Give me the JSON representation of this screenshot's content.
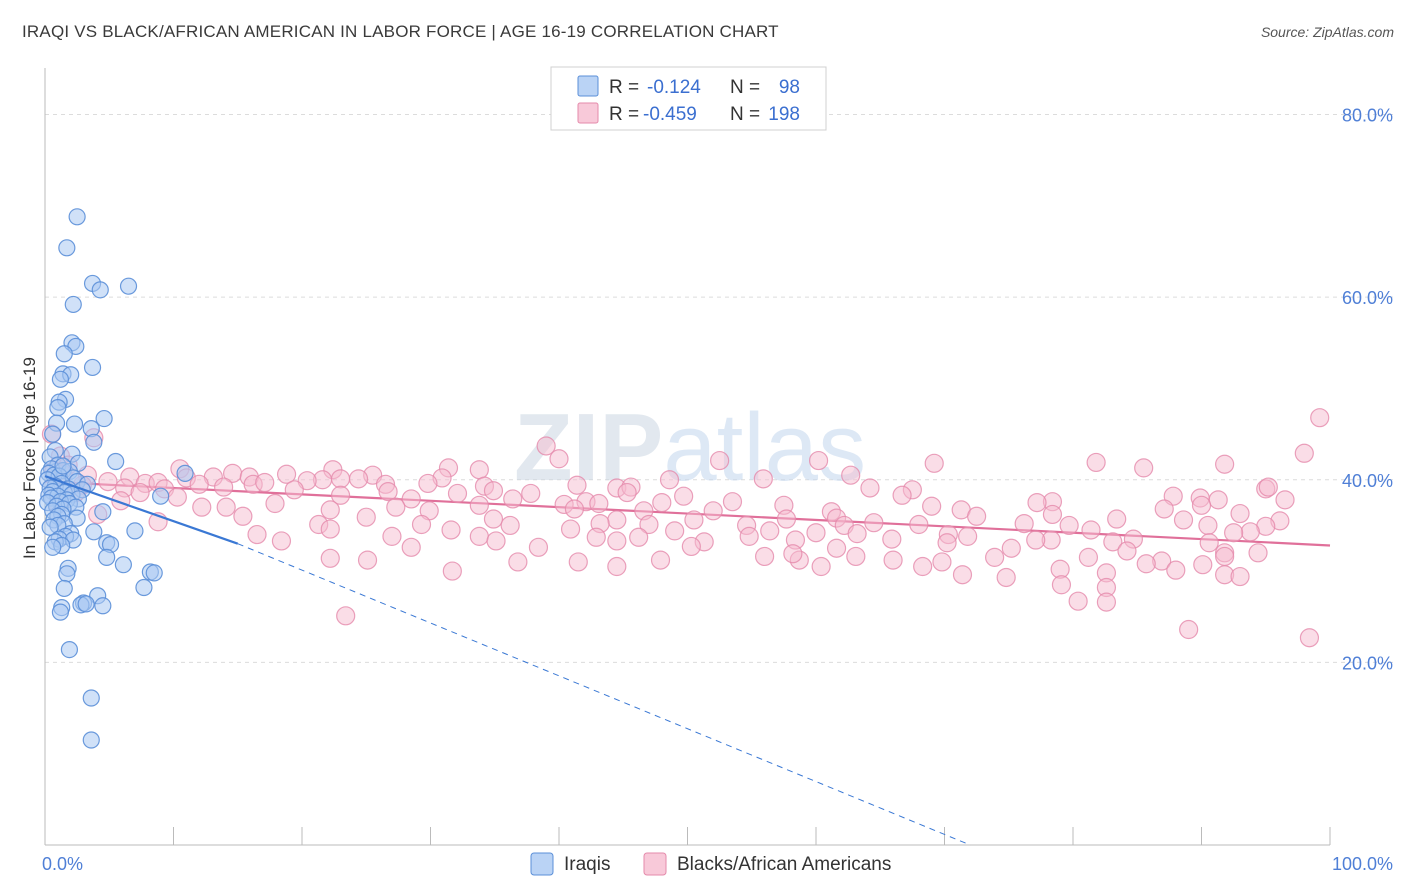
{
  "title": "IRAQI VS BLACK/AFRICAN AMERICAN IN LABOR FORCE | AGE 16-19 CORRELATION CHART",
  "source": "Source: ZipAtlas.com",
  "watermark": "ZIPatlas",
  "colors": {
    "iraqi_fill": "#a9c8f2",
    "iraqi_stroke": "#5b8fd8",
    "iraqi_line": "#3a78d4",
    "black_fill": "#f6bcd0",
    "black_stroke": "#e58aab",
    "black_line": "#e0709a",
    "axis_label": "#4f7fd6",
    "grid": "#dcdcdc"
  },
  "legend": {
    "rows": [
      {
        "r_label": "R =",
        "r_value": "-0.124",
        "n_label": "N =",
        "n_value": "98"
      },
      {
        "r_label": "R =",
        "r_value": "-0.459",
        "n_label": "N =",
        "n_value": "198"
      }
    ]
  },
  "chart_data": {
    "type": "scatter",
    "title": "IRAQI VS BLACK/AFRICAN AMERICAN IN LABOR FORCE | AGE 16-19 CORRELATION CHART",
    "xlabel": "",
    "ylabel": "In Labor Force | Age 16-19",
    "xlim": [
      0,
      100
    ],
    "ylim": [
      0,
      84
    ],
    "x_tick_labels": [
      "0.0%",
      "100.0%"
    ],
    "y_ticks": [
      20,
      40,
      60,
      80
    ],
    "y_tick_labels": [
      "20.0%",
      "40.0%",
      "60.0%",
      "80.0%"
    ],
    "grid": true,
    "series": [
      {
        "name": "Iraqis",
        "R": -0.124,
        "N": 98,
        "trend_solid": [
          [
            0,
            40.4
          ],
          [
            15,
            33.0
          ]
        ],
        "trend_dashed": [
          [
            15,
            33.0
          ],
          [
            72,
            0
          ]
        ],
        "points": [
          [
            2.5,
            68.8
          ],
          [
            1.7,
            65.4
          ],
          [
            3.7,
            61.5
          ],
          [
            4.3,
            60.8
          ],
          [
            6.5,
            61.2
          ],
          [
            2.2,
            59.2
          ],
          [
            2.1,
            55.0
          ],
          [
            2.4,
            54.6
          ],
          [
            1.5,
            53.8
          ],
          [
            3.7,
            52.3
          ],
          [
            1.4,
            51.6
          ],
          [
            2.0,
            51.5
          ],
          [
            1.2,
            51.0
          ],
          [
            1.6,
            48.8
          ],
          [
            1.1,
            48.5
          ],
          [
            1.0,
            47.9
          ],
          [
            4.6,
            46.7
          ],
          [
            0.9,
            46.2
          ],
          [
            2.3,
            46.1
          ],
          [
            3.6,
            45.6
          ],
          [
            0.6,
            45.0
          ],
          [
            3.8,
            44.1
          ],
          [
            0.8,
            43.2
          ],
          [
            2.1,
            42.8
          ],
          [
            0.4,
            42.5
          ],
          [
            5.5,
            42.0
          ],
          [
            2.6,
            41.8
          ],
          [
            1.0,
            41.6
          ],
          [
            0.5,
            41.2
          ],
          [
            1.4,
            41.0
          ],
          [
            1.9,
            40.9
          ],
          [
            0.3,
            40.7
          ],
          [
            10.9,
            40.7
          ],
          [
            0.7,
            40.5
          ],
          [
            1.1,
            40.4
          ],
          [
            2.2,
            40.2
          ],
          [
            0.2,
            40.0
          ],
          [
            2.5,
            39.8
          ],
          [
            1.3,
            39.6
          ],
          [
            3.3,
            39.5
          ],
          [
            0.8,
            39.3
          ],
          [
            0.4,
            39.1
          ],
          [
            1.8,
            39.0
          ],
          [
            2.9,
            38.9
          ],
          [
            0.6,
            38.7
          ],
          [
            1.5,
            38.6
          ],
          [
            2.1,
            38.4
          ],
          [
            0.3,
            38.3
          ],
          [
            1.0,
            38.2
          ],
          [
            9.0,
            38.2
          ],
          [
            0.5,
            38.0
          ],
          [
            2.6,
            37.9
          ],
          [
            1.7,
            37.8
          ],
          [
            1.2,
            37.6
          ],
          [
            0.2,
            37.5
          ],
          [
            1.9,
            37.4
          ],
          [
            0.9,
            37.1
          ],
          [
            2.4,
            37.0
          ],
          [
            1.4,
            36.8
          ],
          [
            0.6,
            36.6
          ],
          [
            4.5,
            36.5
          ],
          [
            1.3,
            36.2
          ],
          [
            1.0,
            36.0
          ],
          [
            2.5,
            35.8
          ],
          [
            0.7,
            35.6
          ],
          [
            1.5,
            35.2
          ],
          [
            1.0,
            35.0
          ],
          [
            0.4,
            34.8
          ],
          [
            7.0,
            34.4
          ],
          [
            3.8,
            34.3
          ],
          [
            2.0,
            34.1
          ],
          [
            1.6,
            33.8
          ],
          [
            1.1,
            33.5
          ],
          [
            2.2,
            33.4
          ],
          [
            0.8,
            33.2
          ],
          [
            4.8,
            33.1
          ],
          [
            5.1,
            32.9
          ],
          [
            1.3,
            32.8
          ],
          [
            0.6,
            32.6
          ],
          [
            4.8,
            31.5
          ],
          [
            6.1,
            30.7
          ],
          [
            1.8,
            30.3
          ],
          [
            8.2,
            29.9
          ],
          [
            8.5,
            29.8
          ],
          [
            1.7,
            29.7
          ],
          [
            7.7,
            28.2
          ],
          [
            1.5,
            28.1
          ],
          [
            4.1,
            27.3
          ],
          [
            3.0,
            26.5
          ],
          [
            2.8,
            26.3
          ],
          [
            4.5,
            26.2
          ],
          [
            3.2,
            26.4
          ],
          [
            1.3,
            26.0
          ],
          [
            1.2,
            25.5
          ],
          [
            1.9,
            21.4
          ],
          [
            3.6,
            16.1
          ],
          [
            3.6,
            11.5
          ],
          [
            1.4,
            41.5
          ]
        ]
      },
      {
        "name": "Blacks/African Americans",
        "R": -0.459,
        "N": 198,
        "trend_solid": [
          [
            0,
            39.8
          ],
          [
            100,
            32.8
          ]
        ],
        "points": [
          [
            99.2,
            46.8
          ],
          [
            0.5,
            45.0
          ],
          [
            3.8,
            44.6
          ],
          [
            98,
            42.9
          ],
          [
            1.2,
            42.6
          ],
          [
            39,
            43.7
          ],
          [
            40,
            42.3
          ],
          [
            52.5,
            42.1
          ],
          [
            60.2,
            42.1
          ],
          [
            69.2,
            41.8
          ],
          [
            1.8,
            41.6
          ],
          [
            10.5,
            41.2
          ],
          [
            31.4,
            41.3
          ],
          [
            81.8,
            41.9
          ],
          [
            85.5,
            41.3
          ],
          [
            91.8,
            41.7
          ],
          [
            0.7,
            41.0
          ],
          [
            22.4,
            41.1
          ],
          [
            33.8,
            41.1
          ],
          [
            1.4,
            40.6
          ],
          [
            3.3,
            40.5
          ],
          [
            14.6,
            40.7
          ],
          [
            18.8,
            40.6
          ],
          [
            25.5,
            40.5
          ],
          [
            62.7,
            40.5
          ],
          [
            6.6,
            40.3
          ],
          [
            11.0,
            40.2
          ],
          [
            13.1,
            40.3
          ],
          [
            15.9,
            40.3
          ],
          [
            21.6,
            40.0
          ],
          [
            23.0,
            40.1
          ],
          [
            24.4,
            40.1
          ],
          [
            30.9,
            40.2
          ],
          [
            48.6,
            40.0
          ],
          [
            55.9,
            40.1
          ],
          [
            4.9,
            39.8
          ],
          [
            7.8,
            39.6
          ],
          [
            8.8,
            39.7
          ],
          [
            12.0,
            39.5
          ],
          [
            16.2,
            39.5
          ],
          [
            17.1,
            39.7
          ],
          [
            20.4,
            39.9
          ],
          [
            26.5,
            39.5
          ],
          [
            29.8,
            39.6
          ],
          [
            34.2,
            39.3
          ],
          [
            41.4,
            39.4
          ],
          [
            44.5,
            39.1
          ],
          [
            45.6,
            39.2
          ],
          [
            64.2,
            39.1
          ],
          [
            67.5,
            38.9
          ],
          [
            95,
            39.0
          ],
          [
            95.2,
            39.2
          ],
          [
            2.9,
            39.4
          ],
          [
            6.2,
            39.1
          ],
          [
            9.3,
            39.0
          ],
          [
            13.9,
            39.2
          ],
          [
            19.4,
            38.9
          ],
          [
            26.7,
            38.7
          ],
          [
            32.1,
            38.5
          ],
          [
            34.9,
            38.8
          ],
          [
            37.8,
            38.5
          ],
          [
            45.3,
            38.6
          ],
          [
            49.7,
            38.2
          ],
          [
            66.7,
            38.3
          ],
          [
            87.8,
            38.2
          ],
          [
            89.9,
            38.0
          ],
          [
            2.4,
            38.6
          ],
          [
            7.4,
            38.6
          ],
          [
            10.3,
            38.1
          ],
          [
            23.0,
            38.3
          ],
          [
            28.5,
            37.9
          ],
          [
            36.4,
            37.9
          ],
          [
            42.1,
            37.6
          ],
          [
            53.5,
            37.6
          ],
          [
            78.4,
            37.6
          ],
          [
            91.3,
            37.8
          ],
          [
            5.9,
            37.7
          ],
          [
            14.1,
            37.0
          ],
          [
            17.9,
            37.4
          ],
          [
            27.3,
            37.0
          ],
          [
            33.8,
            37.2
          ],
          [
            40.4,
            37.3
          ],
          [
            43.1,
            37.4
          ],
          [
            48.0,
            37.5
          ],
          [
            57.5,
            37.2
          ],
          [
            69.0,
            37.1
          ],
          [
            77.2,
            37.5
          ],
          [
            90,
            37.2
          ],
          [
            96.5,
            37.8
          ],
          [
            1.0,
            37.3
          ],
          [
            12.2,
            37.0
          ],
          [
            22.2,
            36.7
          ],
          [
            29.9,
            36.6
          ],
          [
            41.2,
            36.8
          ],
          [
            46.6,
            36.6
          ],
          [
            52.0,
            36.6
          ],
          [
            61.2,
            36.5
          ],
          [
            71.3,
            36.7
          ],
          [
            87.1,
            36.8
          ],
          [
            93,
            36.3
          ],
          [
            4.1,
            36.2
          ],
          [
            15.4,
            36.0
          ],
          [
            25.0,
            35.9
          ],
          [
            34.9,
            35.7
          ],
          [
            44.5,
            35.6
          ],
          [
            50.5,
            35.6
          ],
          [
            57.7,
            35.7
          ],
          [
            61.6,
            35.8
          ],
          [
            72.5,
            36.0
          ],
          [
            78.4,
            36.2
          ],
          [
            83.4,
            35.7
          ],
          [
            88.6,
            35.6
          ],
          [
            96.1,
            35.5
          ],
          [
            8.8,
            35.4
          ],
          [
            21.3,
            35.1
          ],
          [
            29.3,
            35.1
          ],
          [
            36.2,
            35.0
          ],
          [
            43.2,
            35.2
          ],
          [
            47.0,
            35.1
          ],
          [
            54.6,
            35.0
          ],
          [
            62.2,
            35.0
          ],
          [
            64.5,
            35.3
          ],
          [
            68.0,
            35.1
          ],
          [
            76.2,
            35.2
          ],
          [
            79.7,
            35.0
          ],
          [
            90.5,
            35.0
          ],
          [
            95,
            34.9
          ],
          [
            22.2,
            34.6
          ],
          [
            31.6,
            34.5
          ],
          [
            40.9,
            34.6
          ],
          [
            49.0,
            34.4
          ],
          [
            56.4,
            34.4
          ],
          [
            60.0,
            34.2
          ],
          [
            63.2,
            34.1
          ],
          [
            70.3,
            34.0
          ],
          [
            81.4,
            34.5
          ],
          [
            93.8,
            34.3
          ],
          [
            16.5,
            34.0
          ],
          [
            27.0,
            33.8
          ],
          [
            33.8,
            33.8
          ],
          [
            42.9,
            33.7
          ],
          [
            46.2,
            33.7
          ],
          [
            54.8,
            33.8
          ],
          [
            65.9,
            33.5
          ],
          [
            71.8,
            33.8
          ],
          [
            78.3,
            33.4
          ],
          [
            84.7,
            33.5
          ],
          [
            92.5,
            34.2
          ],
          [
            18.4,
            33.3
          ],
          [
            35.1,
            33.3
          ],
          [
            44.5,
            33.3
          ],
          [
            51.3,
            33.2
          ],
          [
            58.4,
            33.4
          ],
          [
            70.2,
            33.1
          ],
          [
            77.1,
            33.4
          ],
          [
            83.1,
            33.2
          ],
          [
            90.6,
            33.1
          ],
          [
            28.5,
            32.6
          ],
          [
            38.4,
            32.6
          ],
          [
            50.3,
            32.7
          ],
          [
            61.6,
            32.5
          ],
          [
            75.2,
            32.5
          ],
          [
            84.2,
            32.2
          ],
          [
            91.8,
            32.0
          ],
          [
            94.4,
            32.0
          ],
          [
            56.0,
            31.6
          ],
          [
            63.1,
            31.6
          ],
          [
            73.9,
            31.5
          ],
          [
            81.2,
            31.5
          ],
          [
            91.8,
            31.6
          ],
          [
            22.2,
            31.4
          ],
          [
            25.1,
            31.2
          ],
          [
            36.8,
            31.0
          ],
          [
            41.5,
            31.0
          ],
          [
            47.9,
            31.2
          ],
          [
            58.7,
            31.2
          ],
          [
            66.0,
            31.2
          ],
          [
            69.8,
            31.0
          ],
          [
            86.9,
            31.1
          ],
          [
            90.1,
            30.7
          ],
          [
            44.5,
            30.5
          ],
          [
            60.4,
            30.5
          ],
          [
            68.3,
            30.5
          ],
          [
            79.0,
            30.2
          ],
          [
            82.6,
            29.8
          ],
          [
            88,
            30.1
          ],
          [
            71.4,
            29.6
          ],
          [
            74.8,
            29.3
          ],
          [
            91.8,
            29.6
          ],
          [
            93,
            29.4
          ],
          [
            79.1,
            28.5
          ],
          [
            82.6,
            28.2
          ],
          [
            80.4,
            26.7
          ],
          [
            82.6,
            26.6
          ],
          [
            89.0,
            23.6
          ],
          [
            98.4,
            22.7
          ],
          [
            23.4,
            25.1
          ],
          [
            31.7,
            30.0
          ],
          [
            58.2,
            31.9
          ],
          [
            85.7,
            30.8
          ]
        ]
      }
    ]
  },
  "bottom_legend": {
    "items": [
      "Iraqis",
      "Blacks/African Americans"
    ]
  }
}
